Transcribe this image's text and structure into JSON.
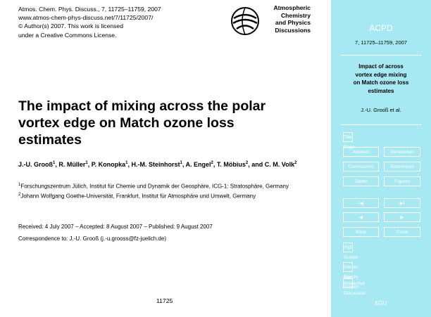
{
  "header": {
    "lines": [
      "Atmos. Chem. Phys. Discuss., 7, 11725–11759, 2007",
      "www.atmos-chem-phys-discuss.net/7/11725/2007/",
      "© Author(s) 2007. This work is licensed",
      "under a Creative Commons License."
    ],
    "logo": [
      "Atmospheric",
      "Chemistry",
      "and Physics",
      "Discussions"
    ]
  },
  "title": [
    "The impact of mixing across the polar",
    "vortex edge on Match ozone loss",
    "estimates"
  ],
  "authors": [
    {
      "name": "J.-U. Grooß",
      "mark": "1",
      "after": ","
    },
    {
      "name": "R. Müller",
      "mark": "1",
      "after": ","
    },
    {
      "name": "P. Konopka",
      "mark": "1",
      "after": ","
    },
    {
      "name": "H.-M. Steinhorst",
      "mark": "1",
      "after": ","
    },
    {
      "name": "A. Engel",
      "mark": "2",
      "after": ","
    },
    {
      "name": "T. Möbius",
      "mark": "2",
      "after": ","
    },
    {
      "name": "and C. M. Volk",
      "mark": "2"
    }
  ],
  "affiliations": [
    {
      "mark": "1",
      "text": "Forschungszentrum Jülich, Institut für Chemie und Dynamik der Geosphäre, ICG-1: Stratosphäre, Germany"
    },
    {
      "mark": "2",
      "text": "Johann Wolfgang Goethe-Universität, Frankfurt, Institut für Atmosphäre und Umwelt, Germany"
    }
  ],
  "dates": "Received: 4 July 2007 – Accepted: 8 August 2007 – Published: 9 August 2007",
  "correspondence": "Correspondence to: J.-U. Grooß (j.-u.grooss@fz-juelich.de)",
  "page_number": "11725",
  "sidebar": {
    "journal": "ACPD",
    "citation": "7, 11725–11759, 2007",
    "short_title": [
      "Impact of across",
      "vortex edge mixing",
      "on Match ozone loss",
      "estimates"
    ],
    "authors": "J.-U. Grooß et al.",
    "buttons": [
      "Title Page",
      "Abstract",
      "Introduction",
      "Conclusions",
      "References",
      "Tables",
      "Figures",
      "I◀",
      "▶I",
      "◀",
      "▶",
      "Back",
      "Close",
      "Full Screen / Esc",
      "Printer-friendly Version",
      "Interactive Discussion"
    ],
    "footer": "EGU"
  }
}
